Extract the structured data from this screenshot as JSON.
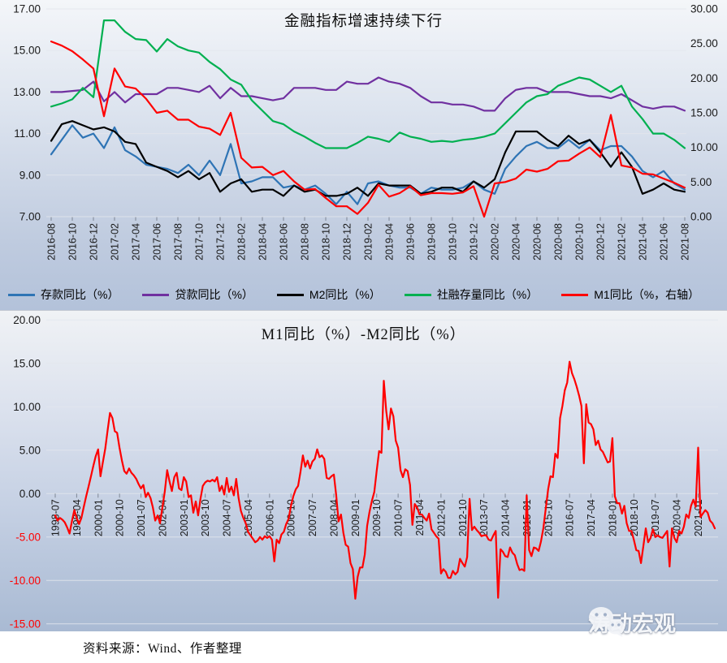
{
  "page": {
    "source_note": "资料来源：Wind、作者整理",
    "watermark_text": "涛动宏观",
    "watermark_icon": "wechat-icon"
  },
  "colors": {
    "deposit": "#2E74B5",
    "loan": "#7030A0",
    "m2": "#000000",
    "tsf": "#00B050",
    "m1": "#FF0000",
    "axis_text": "#1A1A1A",
    "negative_axis_text": "#FF0000",
    "grid_light": "#E3E7ED",
    "tick": "#7E8795"
  },
  "chart_data": [
    {
      "type": "line",
      "title": "金融指标增速持续下行",
      "x_start": "2016-08",
      "x_end": "2021-08",
      "x_freq_months": 1,
      "x_ticks": [
        "2016-08",
        "2016-10",
        "2016-12",
        "2017-02",
        "2017-04",
        "2017-06",
        "2017-08",
        "2017-10",
        "2017-12",
        "2018-02",
        "2018-04",
        "2018-06",
        "2018-08",
        "2018-10",
        "2018-12",
        "2019-02",
        "2019-04",
        "2019-06",
        "2019-08",
        "2019-10",
        "2019-12",
        "2020-02",
        "2020-04",
        "2020-06",
        "2020-08",
        "2020-10",
        "2020-12",
        "2021-02",
        "2021-04",
        "2021-06",
        "2021-08"
      ],
      "x_tick_every": 2,
      "left_axis": {
        "min": 7,
        "max": 17,
        "step": 2,
        "tick_labels": [
          "17.00",
          "15.00",
          "13.00",
          "11.00",
          "9.00",
          "7.00"
        ]
      },
      "right_axis": {
        "min": 0,
        "max": 30,
        "step": 5,
        "tick_labels": [
          "30.00",
          "25.00",
          "20.00",
          "15.00",
          "10.00",
          "5.00",
          "0.00"
        ]
      },
      "grid": true,
      "legend_position": "bottom",
      "series": [
        {
          "name": "存款同比（%）",
          "color_key": "deposit",
          "axis": "left",
          "values": [
            10.0,
            10.7,
            11.4,
            10.8,
            11.0,
            10.3,
            11.3,
            10.2,
            9.9,
            9.5,
            9.4,
            9.3,
            9.1,
            9.5,
            9.0,
            9.7,
            9.0,
            10.5,
            8.6,
            8.7,
            8.9,
            8.9,
            8.4,
            8.5,
            8.3,
            8.5,
            8.1,
            7.6,
            8.2,
            7.6,
            8.6,
            8.7,
            8.5,
            8.4,
            8.4,
            8.1,
            8.4,
            8.3,
            8.3,
            8.4,
            8.7,
            8.3,
            8.1,
            9.3,
            9.9,
            10.4,
            10.6,
            10.3,
            10.3,
            10.7,
            10.3,
            10.7,
            10.2,
            10.4,
            10.4,
            9.9,
            9.2,
            8.9,
            9.2,
            8.6,
            8.3
          ]
        },
        {
          "name": "贷款同比（%）",
          "color_key": "loan",
          "axis": "left",
          "values": [
            13.0,
            13.0,
            13.05,
            13.1,
            13.5,
            12.55,
            13.0,
            12.5,
            12.9,
            12.9,
            12.9,
            13.2,
            13.2,
            13.1,
            13.0,
            13.3,
            12.7,
            13.2,
            12.8,
            12.8,
            12.7,
            12.6,
            12.7,
            13.2,
            13.2,
            13.2,
            13.1,
            13.1,
            13.5,
            13.4,
            13.4,
            13.7,
            13.5,
            13.4,
            13.2,
            12.8,
            12.5,
            12.5,
            12.4,
            12.4,
            12.3,
            12.1,
            12.1,
            12.7,
            13.1,
            13.2,
            13.2,
            13.0,
            13.0,
            13.0,
            12.9,
            12.8,
            12.8,
            12.7,
            12.9,
            12.6,
            12.3,
            12.2,
            12.3,
            12.3,
            12.1
          ]
        },
        {
          "name": "M2同比（%）",
          "color_key": "m2",
          "axis": "left",
          "values": [
            10.65,
            11.45,
            11.6,
            11.4,
            11.2,
            11.3,
            11.1,
            10.6,
            10.5,
            9.6,
            9.4,
            9.2,
            8.9,
            9.2,
            8.8,
            9.1,
            8.2,
            8.6,
            8.8,
            8.2,
            8.3,
            8.3,
            8.0,
            8.5,
            8.2,
            8.3,
            8.0,
            8.0,
            8.1,
            8.4,
            8.0,
            8.6,
            8.5,
            8.5,
            8.5,
            8.1,
            8.2,
            8.4,
            8.4,
            8.2,
            8.7,
            8.4,
            8.8,
            10.1,
            11.1,
            11.1,
            11.1,
            10.7,
            10.4,
            10.9,
            10.5,
            10.7,
            10.1,
            9.4,
            10.1,
            9.4,
            8.1,
            8.3,
            8.6,
            8.3,
            8.2
          ]
        },
        {
          "name": "社融存量同比（%）",
          "color_key": "tsf",
          "axis": "left",
          "values": [
            12.3,
            12.45,
            12.65,
            13.2,
            12.75,
            16.45,
            16.45,
            15.9,
            15.55,
            15.5,
            14.95,
            15.55,
            15.2,
            15.0,
            14.9,
            14.45,
            14.1,
            13.6,
            13.35,
            12.6,
            12.1,
            11.6,
            11.45,
            11.1,
            10.85,
            10.55,
            10.3,
            10.3,
            10.3,
            10.55,
            10.85,
            10.75,
            10.6,
            11.05,
            10.85,
            10.75,
            10.6,
            10.65,
            10.6,
            10.7,
            10.75,
            10.85,
            11.0,
            11.5,
            12.0,
            12.5,
            12.8,
            12.9,
            13.3,
            13.5,
            13.7,
            13.6,
            13.3,
            13.0,
            13.3,
            12.3,
            11.7,
            11.0,
            11.0,
            10.7,
            10.3
          ]
        },
        {
          "name": "M1同比（%，右轴）",
          "color_key": "m1",
          "axis": "right",
          "values": [
            25.3,
            24.7,
            23.9,
            22.7,
            21.4,
            14.5,
            21.4,
            18.8,
            18.5,
            17.0,
            15.0,
            15.3,
            14.0,
            14.0,
            13.0,
            12.7,
            11.8,
            15.0,
            8.5,
            7.1,
            7.2,
            6.0,
            6.6,
            5.1,
            3.9,
            4.0,
            2.7,
            1.5,
            1.5,
            0.4,
            2.0,
            4.6,
            2.9,
            3.4,
            4.4,
            3.1,
            3.4,
            3.4,
            3.3,
            3.5,
            4.4,
            0.0,
            4.8,
            5.0,
            5.5,
            6.8,
            6.5,
            6.9,
            8.0,
            8.1,
            9.1,
            10.0,
            8.6,
            14.7,
            7.4,
            7.1,
            6.2,
            6.1,
            5.5,
            4.9,
            4.2
          ]
        }
      ]
    },
    {
      "type": "line",
      "title": "M1同比（%）-M2同比（%）",
      "x_start": "1998-07",
      "x_end": "2021-08",
      "x_freq_months": 1,
      "x_ticks": [
        "1998-07",
        "1999-04",
        "2000-01",
        "2000-10",
        "2001-07",
        "2002-04",
        "2003-01",
        "2003-10",
        "2004-07",
        "2005-04",
        "2006-01",
        "2006-10",
        "2007-07",
        "2008-04",
        "2009-01",
        "2009-10",
        "2010-07",
        "2011-04",
        "2012-01",
        "2012-10",
        "2013-07",
        "2014-04",
        "2015-01",
        "2015-10",
        "2016-07",
        "2017-04",
        "2018-01",
        "2018-10",
        "2019-07",
        "2020-04",
        "2021-01"
      ],
      "x_tick_every": 9,
      "left_axis": {
        "min": -15,
        "max": 20,
        "step": 5,
        "tick_labels": [
          "20.00",
          "15.00",
          "10.00",
          "5.00",
          "0.00",
          "-5.00",
          "-10.00",
          "-15.00"
        ]
      },
      "grid": true,
      "legend_position": "none",
      "series": [
        {
          "name": "M1同比（%）-M2同比（%）",
          "color_key": "m1",
          "axis": "left",
          "values": [
            -2.5,
            -3.1,
            -2.8,
            -3.0,
            -3.3,
            -3.9,
            -4.6,
            -3.2,
            -1.9,
            -2.8,
            -3.5,
            -2.8,
            -1.5,
            -0.3,
            0.8,
            2.0,
            3.2,
            4.3,
            5.1,
            2.0,
            3.6,
            5.2,
            7.3,
            9.3,
            8.7,
            7.2,
            7.0,
            5.3,
            3.8,
            2.6,
            2.3,
            2.9,
            2.4,
            2.1,
            1.7,
            1.1,
            0.6,
            1.0,
            -0.4,
            0.1,
            -0.5,
            -1.6,
            -3.1,
            -2.5,
            -3.4,
            -1.6,
            0.2,
            2.7,
            1.4,
            0.3,
            1.9,
            2.4,
            0.6,
            0.4,
            1.9,
            1.4,
            -0.4,
            -0.2,
            -2.2,
            -0.9,
            -2.5,
            -0.6,
            0.9,
            1.3,
            1.5,
            1.4,
            1.6,
            1.4,
            1.9,
            0.3,
            0.9,
            -0.1,
            1.8,
            0.2,
            0.8,
            -0.2,
            1.7,
            -0.5,
            -2.0,
            -2.8,
            -3.4,
            -4.4,
            -4.8,
            -5.2,
            -5.6,
            -5.4,
            -5.0,
            -5.3,
            -4.9,
            -5.1,
            -4.9,
            -5.3,
            -7.8,
            -5.3,
            -5.7,
            -4.7,
            -4.4,
            -3.5,
            -2.9,
            -1.4,
            -0.3,
            0.5,
            0.9,
            2.5,
            4.4,
            3.1,
            3.8,
            2.9,
            3.7,
            4.0,
            5.1,
            4.2,
            4.4,
            4.0,
            1.8,
            1.7,
            2.0,
            2.2,
            -0.2,
            -3.2,
            -2.4,
            -4.5,
            -5.9,
            -6.1,
            -8.0,
            -8.7,
            -12.1,
            -9.6,
            -8.5,
            -8.5,
            -7.0,
            -3.7,
            -2.1,
            -0.8,
            0.2,
            2.6,
            4.9,
            4.7,
            13.0,
            9.5,
            7.4,
            9.8,
            8.9,
            6.1,
            5.3,
            2.7,
            1.9,
            2.8,
            2.6,
            1.0,
            -3.6,
            -1.2,
            -1.6,
            -2.4,
            -2.4,
            -2.8,
            -3.1,
            -2.3,
            -4.1,
            -4.5,
            -4.9,
            -5.2,
            -9.2,
            -8.7,
            -9.0,
            -9.7,
            -9.7,
            -8.9,
            -9.3,
            -9.0,
            -7.5,
            -8.0,
            -8.4,
            -7.3,
            -0.6,
            -4.2,
            -3.8,
            -4.2,
            -4.5,
            -4.9,
            -4.8,
            -4.8,
            -5.3,
            -5.4,
            -4.8,
            -4.3,
            -12.0,
            -6.4,
            -6.7,
            -7.2,
            -7.3,
            -6.2,
            -6.8,
            -7.1,
            -8.1,
            -8.8,
            -8.7,
            -8.9,
            -0.2,
            -6.5,
            -7.2,
            -6.2,
            -6.3,
            -6.6,
            -5.5,
            -4.0,
            -1.7,
            0.5,
            2.0,
            1.9,
            4.6,
            4.1,
            8.7,
            10.1,
            11.9,
            12.8,
            15.2,
            13.9,
            13.2,
            12.3,
            11.3,
            10.1,
            3.5,
            10.3,
            8.2,
            8.0,
            7.4,
            5.6,
            6.1,
            5.1,
            4.8,
            4.2,
            3.6,
            3.7,
            6.4,
            -0.3,
            -1.1,
            -1.1,
            -2.3,
            -1.4,
            -3.4,
            -4.3,
            -4.3,
            -5.3,
            -6.5,
            -6.6,
            -8.0,
            -6.0,
            -4.0,
            -5.6,
            -5.1,
            -4.1,
            -5.0,
            -4.8,
            -5.0,
            -5.1,
            -4.7,
            -4.3,
            -8.4,
            -4.0,
            -5.1,
            -5.6,
            -4.3,
            -4.6,
            -3.8,
            -2.4,
            -2.8,
            -1.4,
            -0.7,
            -1.5,
            5.3,
            -2.7,
            -2.3,
            -1.9,
            -2.2,
            -3.1,
            -3.4,
            -4.0
          ]
        }
      ]
    }
  ]
}
